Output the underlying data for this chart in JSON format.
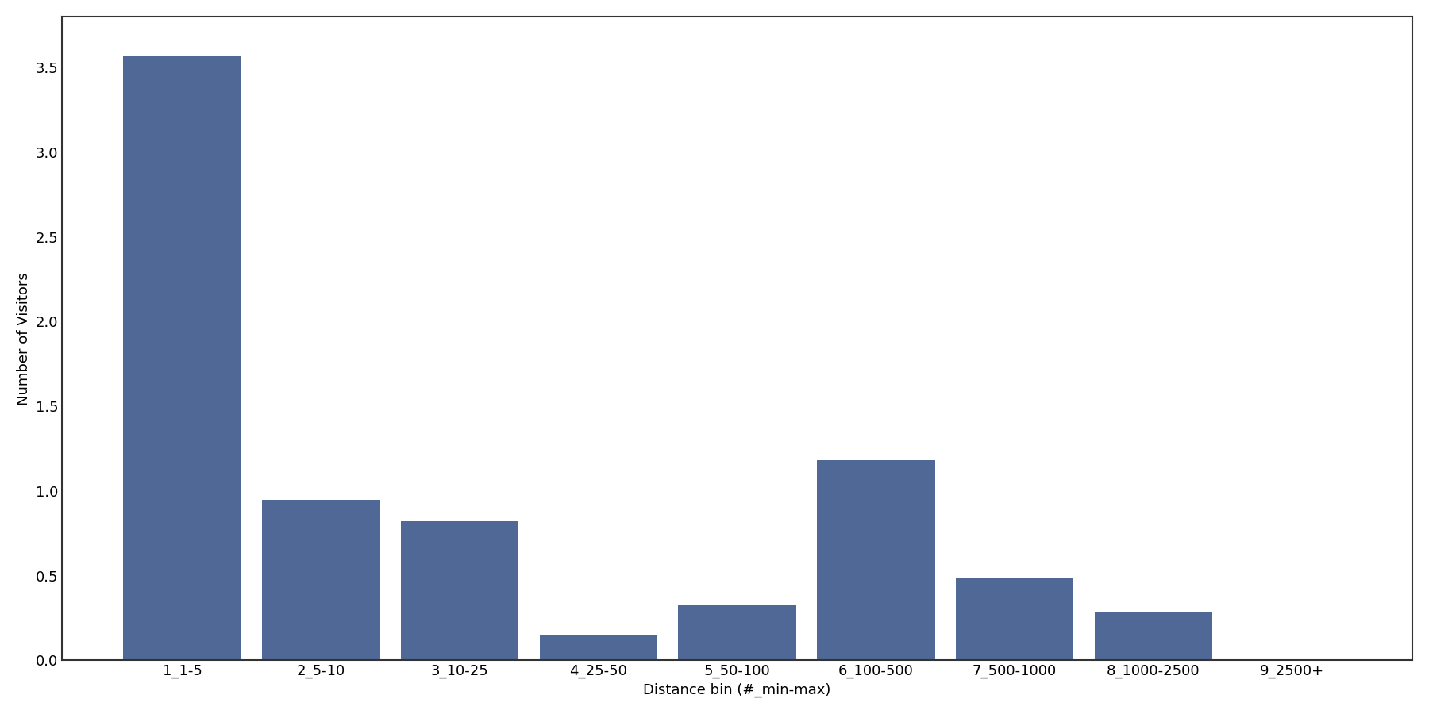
{
  "categories": [
    "1_1-5",
    "2_5-10",
    "3_10-25",
    "4_25-50",
    "5_50-100",
    "6_100-500",
    "7_500-1000",
    "8_1000-2500",
    "9_2500+"
  ],
  "values": [
    357000000,
    95000000,
    82000000,
    15000000,
    33000000,
    118000000,
    49000000,
    29000000,
    500000
  ],
  "bar_color": "#4f6895",
  "xlabel": "Distance bin (#_min-max)",
  "ylabel": "Number of Visitors",
  "ylim": [
    0,
    380000000
  ],
  "background_color": "#ffffff",
  "figure_width": 18.0,
  "figure_height": 9.0,
  "dpi": 100,
  "bar_width": 0.85,
  "tick_fontsize": 13,
  "label_fontsize": 13
}
